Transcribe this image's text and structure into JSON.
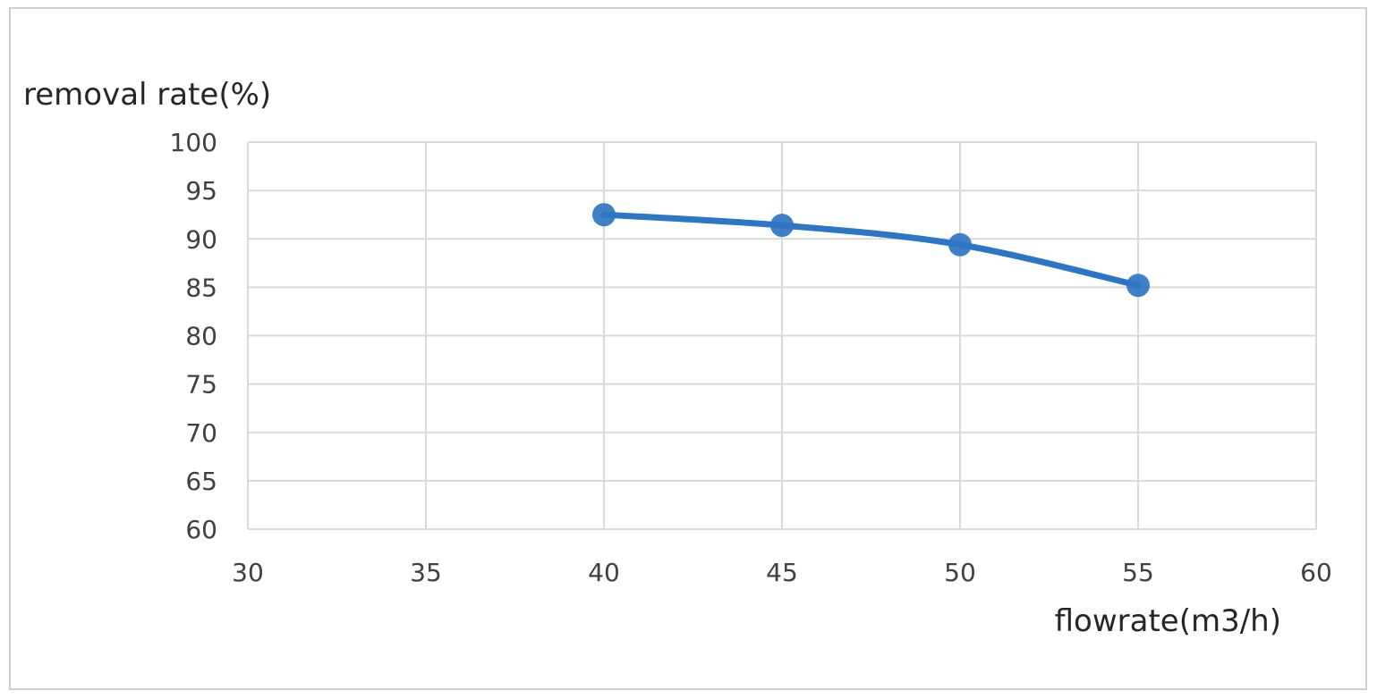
{
  "chart_data": {
    "type": "line",
    "ylabel": "removal rate(%)",
    "xlabel": "flowrate(m3/h)",
    "xlim": [
      30,
      60
    ],
    "ylim": [
      60,
      100
    ],
    "x_ticks": [
      "30",
      "35",
      "40",
      "45",
      "50",
      "55",
      "60"
    ],
    "y_ticks": [
      "100",
      "95",
      "90",
      "85",
      "80",
      "75",
      "70",
      "65",
      "60"
    ],
    "grid": true,
    "smooth": true,
    "series": [
      {
        "x": [
          40,
          45,
          50,
          55
        ],
        "values": [
          92.5,
          91.4,
          89.4,
          85.2
        ],
        "color": "#2f75c2"
      }
    ]
  }
}
